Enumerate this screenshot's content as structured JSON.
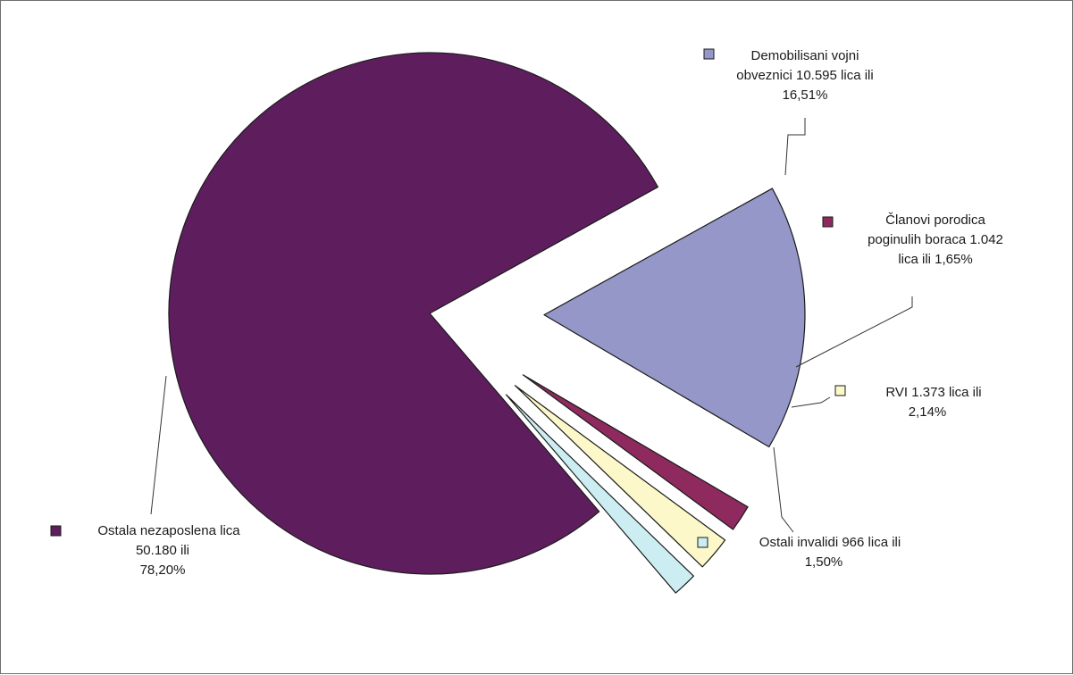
{
  "chart_data": {
    "type": "pie",
    "slices": [
      {
        "key": "demobilisani",
        "value": 16.51,
        "color": "#9597c9",
        "label_lines": [
          "Demobilisani vojni",
          "obveznici 10.595 lica ili",
          "16,51%"
        ]
      },
      {
        "key": "clanovi",
        "value": 1.65,
        "color": "#8e2a5e",
        "label_lines": [
          "Članovi porodica",
          "poginulih boraca 1.042",
          "lica ili 1,65%"
        ]
      },
      {
        "key": "rvi",
        "value": 2.14,
        "color": "#fcf8c9",
        "label_lines": [
          "RVI 1.373 lica ili",
          "2,14%"
        ]
      },
      {
        "key": "ostali_invalidi",
        "value": 1.5,
        "color": "#cceef2",
        "label_lines": [
          "Ostali invalidi 966 lica ili",
          "1,50%"
        ]
      },
      {
        "key": "ostala",
        "value": 78.2,
        "color": "#5e1e5e",
        "label_lines": [
          "Ostala nezaposlena lica",
          "50.180  ili",
          "78,20%"
        ]
      }
    ]
  }
}
